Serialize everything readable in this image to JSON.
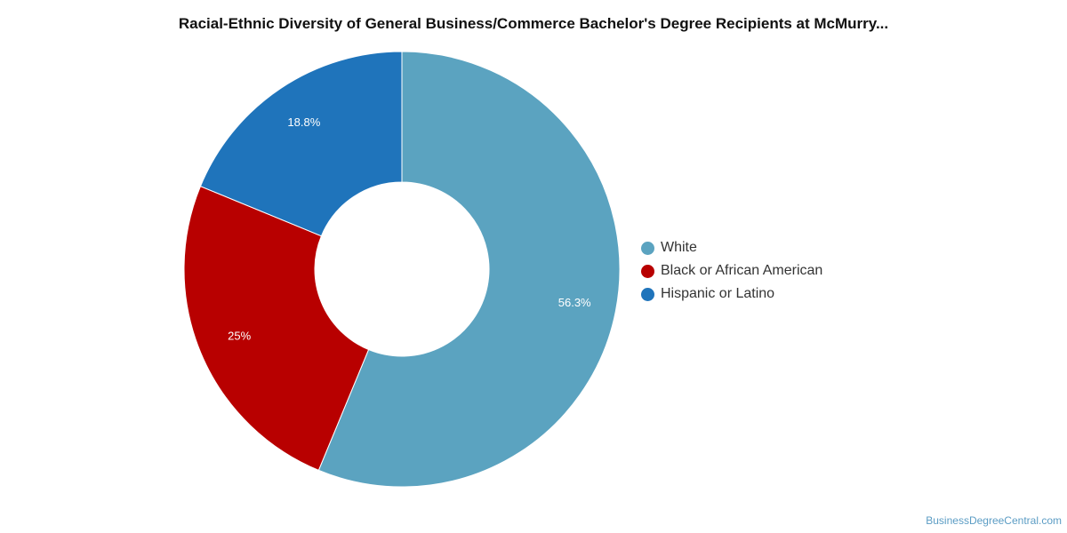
{
  "chart_data": {
    "type": "pie",
    "title": "Racial-Ethnic Diversity of General Business/Commerce Bachelor's Degree Recipients at McMurry...",
    "slices": [
      {
        "label": "White",
        "value": 56.3,
        "value_label": "56.3%",
        "color": "#5ba3c0"
      },
      {
        "label": "Black or African American",
        "value": 25,
        "value_label": "25%",
        "color": "#b80000"
      },
      {
        "label": "Hispanic or Latino",
        "value": 18.8,
        "value_label": "18.8%",
        "color": "#1f74bb"
      }
    ],
    "style": "donut",
    "legend_position": "right"
  },
  "watermark": "BusinessDegreeCentral.com"
}
